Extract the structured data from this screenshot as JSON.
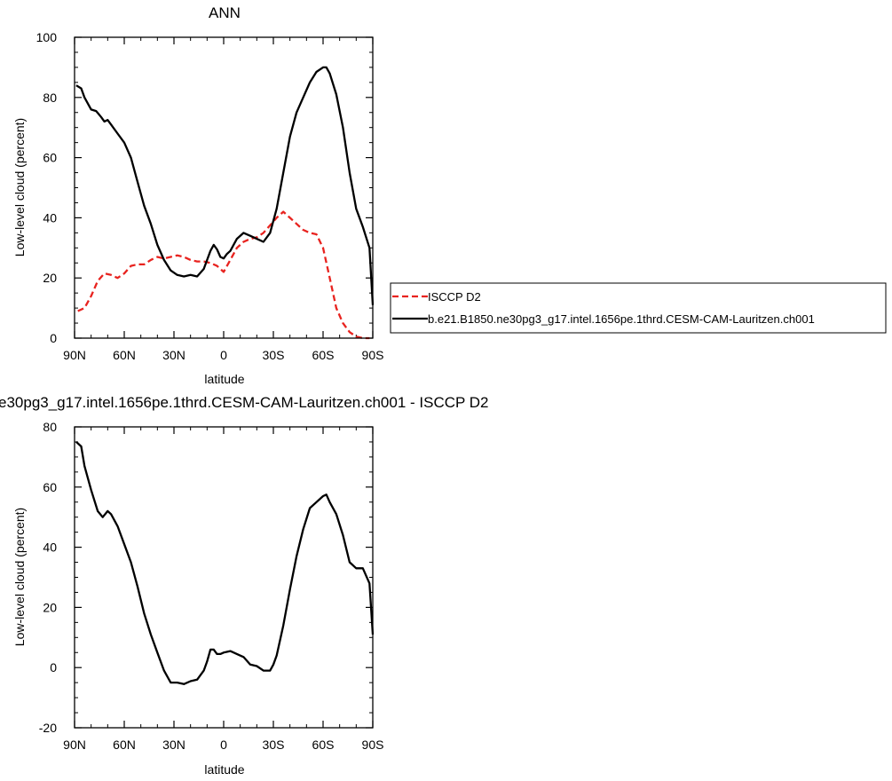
{
  "chart_data": [
    {
      "type": "line",
      "title": "ANN",
      "xlabel": "latitude",
      "ylabel": "Low-level cloud (percent)",
      "x_ticklabels": [
        "90N",
        "60N",
        "30N",
        "0",
        "30S",
        "60S",
        "90S"
      ],
      "x_tickvalues": [
        -90,
        -60,
        -30,
        0,
        30,
        60,
        90
      ],
      "ylim": [
        0,
        100
      ],
      "y_ticks": [
        0,
        20,
        40,
        60,
        80,
        100
      ],
      "y_ticklabels": [
        "0",
        "20",
        "40",
        "60",
        "80",
        "100"
      ],
      "series": [
        {
          "name": "ISCCP D2",
          "color": "#e8231f",
          "dash": "dashed",
          "x": [
            -88,
            -84,
            -80,
            -76,
            -72,
            -68,
            -64,
            -60,
            -56,
            -52,
            -48,
            -44,
            -40,
            -36,
            -32,
            -28,
            -24,
            -20,
            -16,
            -12,
            -8,
            -4,
            0,
            4,
            8,
            12,
            16,
            20,
            24,
            28,
            32,
            36,
            40,
            44,
            48,
            52,
            56,
            60,
            64,
            68,
            72,
            76,
            80,
            84,
            88
          ],
          "y": [
            9,
            10,
            14,
            19,
            21.5,
            21,
            20,
            21.5,
            24,
            24.5,
            24.5,
            26,
            27,
            26.5,
            27,
            27.5,
            27,
            26,
            25.5,
            25.5,
            25,
            24,
            22,
            26,
            30,
            32,
            33,
            33.5,
            35,
            37.5,
            40,
            42,
            40,
            38,
            36,
            35,
            34.5,
            30,
            20,
            10,
            5,
            2,
            0.5,
            0,
            0
          ]
        },
        {
          "name": "b.e21.B1850.ne30pg3_g17.intel.1656pe.1thrd.CESM-CAM-Lauritzen.ch001",
          "color": "#000000",
          "dash": "solid",
          "x": [
            -89,
            -86,
            -84,
            -80,
            -77,
            -74,
            -72,
            -70,
            -68,
            -64,
            -60,
            -56,
            -52,
            -48,
            -44,
            -40,
            -36,
            -32,
            -28,
            -24,
            -20,
            -16,
            -12,
            -8,
            -6,
            -4,
            -2,
            0,
            2,
            4,
            8,
            12,
            16,
            20,
            24,
            28,
            32,
            36,
            40,
            44,
            48,
            52,
            56,
            60,
            62,
            64,
            68,
            72,
            76,
            80,
            84,
            88,
            90
          ],
          "y": [
            84,
            83,
            80,
            76,
            75.5,
            73.5,
            72,
            72.5,
            71,
            68,
            65,
            60,
            52,
            44,
            38,
            31,
            26,
            22.5,
            21,
            20.5,
            21,
            20.5,
            23,
            29,
            31,
            29.5,
            27,
            26.5,
            28,
            29,
            33,
            35,
            34,
            33,
            32,
            35,
            43,
            55,
            67,
            75,
            80,
            85,
            88.5,
            90,
            90,
            88,
            81,
            70,
            55,
            43,
            37,
            30,
            11
          ]
        }
      ],
      "legend": "right"
    },
    {
      "type": "line",
      "title": "e30pg3_g17.intel.1656pe.1thrd.CESM-CAM-Lauritzen.ch001 - ISCCP D2",
      "xlabel": "latitude",
      "ylabel": "Low-level cloud (percent)",
      "x_ticklabels": [
        "90N",
        "60N",
        "30N",
        "0",
        "30S",
        "60S",
        "90S"
      ],
      "x_tickvalues": [
        -90,
        -60,
        -30,
        0,
        30,
        60,
        90
      ],
      "ylim": [
        -20,
        80
      ],
      "y_ticks": [
        -20,
        0,
        20,
        40,
        60,
        80
      ],
      "y_ticklabels": [
        "-20",
        "0",
        "20",
        "40",
        "60",
        "80"
      ],
      "series": [
        {
          "color": "#000000",
          "dash": "solid",
          "x": [
            -89,
            -86,
            -84,
            -80,
            -76,
            -73,
            -70,
            -68,
            -64,
            -60,
            -56,
            -52,
            -48,
            -44,
            -40,
            -36,
            -32,
            -30,
            -28,
            -24,
            -20,
            -16,
            -12,
            -10,
            -8,
            -6,
            -4,
            -2,
            0,
            4,
            8,
            12,
            16,
            20,
            24,
            28,
            30,
            32,
            36,
            40,
            44,
            48,
            52,
            56,
            60,
            62,
            64,
            68,
            72,
            76,
            80,
            84,
            88,
            90
          ],
          "y": [
            75,
            73.5,
            67,
            59,
            52,
            50,
            52,
            51,
            47,
            41,
            35,
            27,
            18,
            11,
            5,
            -1,
            -5,
            -5,
            -5,
            -5.5,
            -4.5,
            -4,
            -1,
            2,
            6,
            6,
            4.5,
            4.5,
            5,
            5.5,
            4.5,
            3.5,
            1,
            0.5,
            -1,
            -1,
            1,
            4,
            14,
            26,
            37,
            46,
            53,
            55,
            57,
            57.5,
            55,
            51,
            44,
            35,
            33,
            33,
            28,
            11
          ]
        }
      ]
    }
  ]
}
